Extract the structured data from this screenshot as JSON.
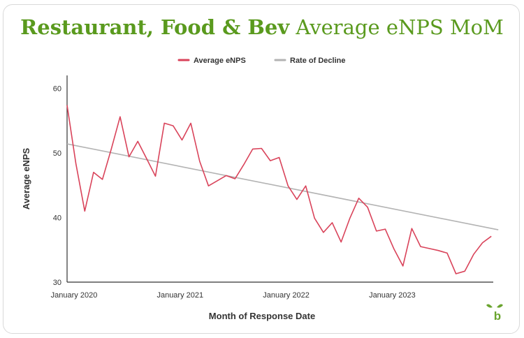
{
  "title_bold": "Restaurant, Food & Bev",
  "title_light": "Average eNPS MoM",
  "chart_data": {
    "type": "line",
    "xlabel": "Month of Response Date",
    "ylabel": "Average eNPS",
    "ylim": [
      30,
      62
    ],
    "yticks": [
      30,
      40,
      50,
      60
    ],
    "x_ticks": [
      {
        "label": "January 2020",
        "index": 0
      },
      {
        "label": "January 2021",
        "index": 12
      },
      {
        "label": "January 2022",
        "index": 24
      },
      {
        "label": "January 2023",
        "index": 36
      }
    ],
    "legend_position": "top-center",
    "series": [
      {
        "name": "Average eNPS",
        "color": "#d9435a",
        "values": [
          57.4,
          48.3,
          41.0,
          47.0,
          45.9,
          50.6,
          55.6,
          49.4,
          51.8,
          49.1,
          46.4,
          54.6,
          54.2,
          52.0,
          54.6,
          48.7,
          44.9,
          45.7,
          46.5,
          46.0,
          48.2,
          50.6,
          50.7,
          48.8,
          49.3,
          44.9,
          42.8,
          44.9,
          39.9,
          37.7,
          39.2,
          36.2,
          39.9,
          43.0,
          41.6,
          37.9,
          38.2,
          35.1,
          32.5,
          38.3,
          35.5,
          35.2,
          34.9,
          34.5,
          31.3,
          31.7,
          34.3,
          36.1,
          37.1
        ]
      },
      {
        "name": "Rate of Decline",
        "color": "#b3b3b3",
        "values": [
          51.4,
          38.1
        ]
      }
    ]
  },
  "logo_letter": "b"
}
